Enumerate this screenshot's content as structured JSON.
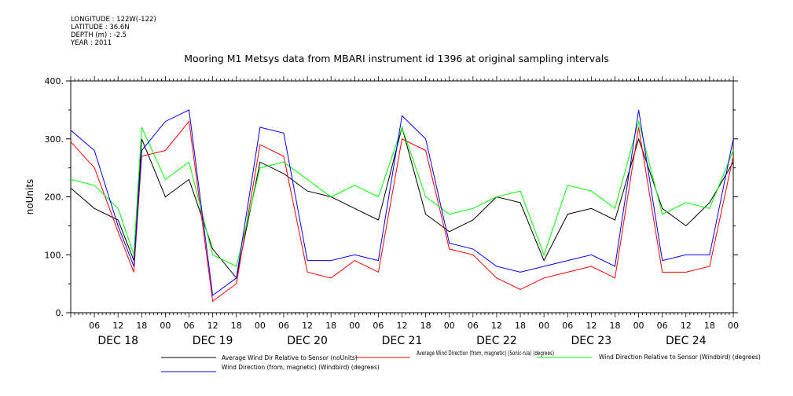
{
  "metadata": {
    "longitude": "LONGITUDE : 122W(-122)",
    "latitude": "LATITUDE : 36.6N",
    "depth": "DEPTH (m) : -2.5",
    "year": "YEAR : 2011"
  },
  "chart_data": {
    "type": "line",
    "title": "Mooring M1 Metsys data from MBARI instrument id 1396 at original sampling intervals",
    "ylabel": "noUnits",
    "ylim": [
      0,
      400
    ],
    "yticks": [
      "0.",
      "100.",
      "200.",
      "300.",
      "400."
    ],
    "xlim_hours": [
      0,
      168
    ],
    "x_hour_labels": [
      "06",
      "12",
      "18",
      "00",
      "06",
      "12",
      "18",
      "00",
      "06",
      "12",
      "18",
      "00",
      "06",
      "12",
      "18",
      "00",
      "06",
      "12",
      "18",
      "00",
      "06",
      "12",
      "18",
      "00",
      "06",
      "12",
      "18",
      "00"
    ],
    "x_day_labels": [
      "DEC 18",
      "DEC 19",
      "DEC 20",
      "DEC 21",
      "DEC 22",
      "DEC 23",
      "DEC 24"
    ],
    "series": [
      {
        "name": "Average Wind Dir Relative to Sensor (noUnits)",
        "color": "#000000",
        "x": [
          0,
          6,
          12,
          16,
          18,
          24,
          30,
          36,
          42,
          48,
          54,
          60,
          66,
          72,
          78,
          84,
          90,
          96,
          102,
          108,
          114,
          120,
          126,
          132,
          138,
          144,
          150,
          156,
          162,
          168
        ],
        "y": [
          215,
          180,
          160,
          90,
          300,
          200,
          230,
          110,
          60,
          260,
          240,
          210,
          200,
          180,
          160,
          320,
          170,
          140,
          160,
          200,
          190,
          90,
          170,
          180,
          160,
          300,
          180,
          150,
          190,
          260
        ]
      },
      {
        "name": "Average Wind Direction (from, magnetic) (Sonic-n/a) (degrees)",
        "color": "#ff0000",
        "x": [
          0,
          6,
          12,
          16,
          18,
          24,
          30,
          36,
          42,
          48,
          54,
          60,
          66,
          72,
          78,
          84,
          90,
          96,
          102,
          108,
          114,
          120,
          126,
          132,
          138,
          144,
          150,
          156,
          162,
          168
        ],
        "y": [
          295,
          250,
          140,
          70,
          270,
          280,
          330,
          20,
          50,
          290,
          270,
          70,
          60,
          90,
          70,
          300,
          280,
          110,
          100,
          60,
          40,
          60,
          70,
          80,
          60,
          320,
          70,
          70,
          80,
          270
        ]
      },
      {
        "name": "Wind Direction Relative to Sensor (Windbird) (degrees)",
        "color": "#00ff00",
        "x": [
          0,
          6,
          12,
          16,
          18,
          24,
          30,
          36,
          42,
          48,
          54,
          60,
          66,
          72,
          78,
          84,
          90,
          96,
          102,
          108,
          114,
          120,
          126,
          132,
          138,
          144,
          150,
          156,
          162,
          168
        ],
        "y": [
          230,
          220,
          180,
          100,
          320,
          230,
          260,
          100,
          80,
          250,
          260,
          230,
          200,
          220,
          200,
          320,
          200,
          170,
          180,
          200,
          210,
          100,
          220,
          210,
          180,
          330,
          170,
          190,
          180,
          280
        ]
      },
      {
        "name": "Wind Direction (from, magnetic) (Windbird) (degrees)",
        "color": "#0000ff",
        "x": [
          0,
          6,
          12,
          16,
          18,
          24,
          30,
          36,
          42,
          48,
          54,
          60,
          66,
          72,
          78,
          84,
          90,
          96,
          102,
          108,
          114,
          120,
          126,
          132,
          138,
          144,
          150,
          156,
          162,
          168
        ],
        "y": [
          315,
          280,
          150,
          80,
          280,
          330,
          350,
          30,
          60,
          320,
          310,
          90,
          90,
          100,
          90,
          340,
          300,
          120,
          110,
          80,
          70,
          80,
          90,
          100,
          80,
          350,
          90,
          100,
          100,
          300
        ]
      }
    ],
    "legend_placement": "bottom",
    "grid": false
  }
}
